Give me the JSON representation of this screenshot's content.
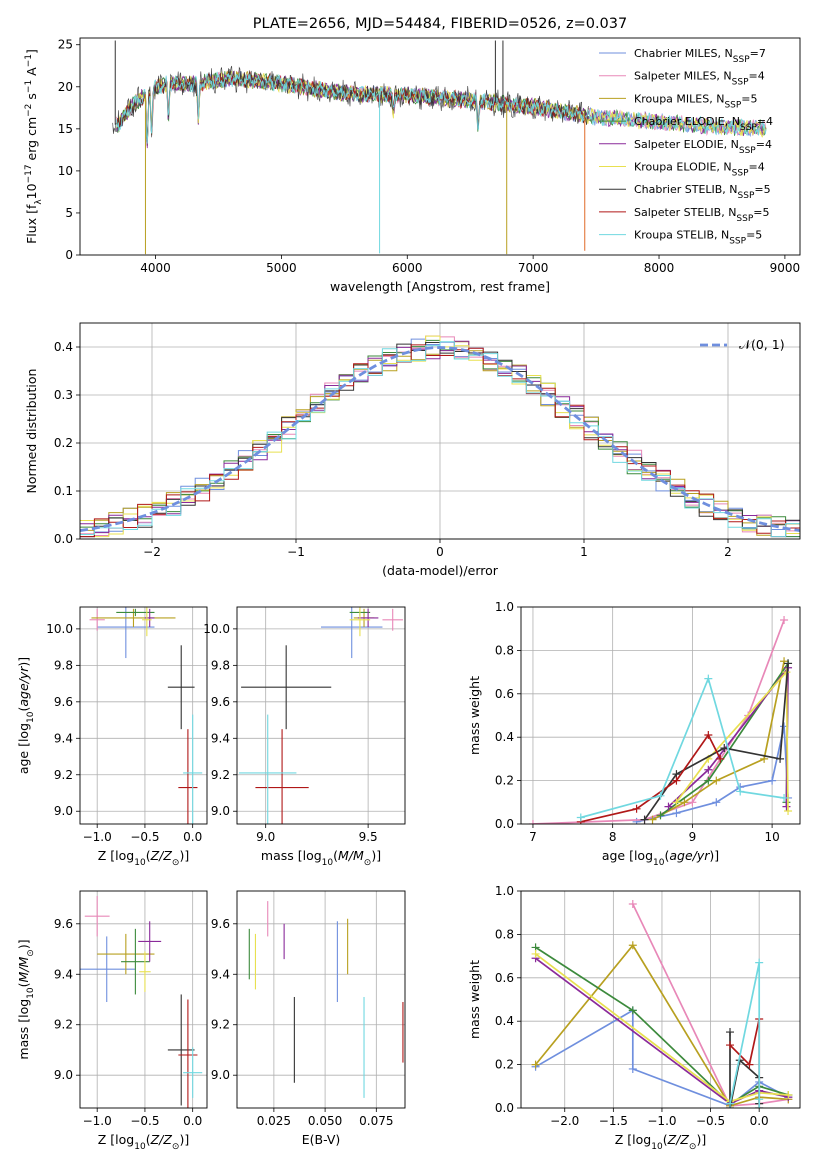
{
  "figure_title": "PLATE=2656, MJD=54484, FIBERID=0526, z=0.037",
  "legend": [
    {
      "text": "Chabrier MILES, N",
      "sub": "SSP",
      "tail": "=7",
      "color": "#6f8fde"
    },
    {
      "text": "Salpeter MILES, N",
      "sub": "SSP",
      "tail": "=4",
      "color": "#e888b8"
    },
    {
      "text": "Kroupa MILES, N",
      "sub": "SSP",
      "tail": "=5",
      "color": "#b8a020"
    },
    {
      "text": "Chabrier ELODIE, N",
      "sub": "SSP",
      "tail": "=4",
      "color": "#3c8a3c"
    },
    {
      "text": "Salpeter ELODIE, N",
      "sub": "SSP",
      "tail": "=4",
      "color": "#8a2a9a"
    },
    {
      "text": "Kroupa ELODIE, N",
      "sub": "SSP",
      "tail": "=4",
      "color": "#e8e050"
    },
    {
      "text": "Chabrier STELIB, N",
      "sub": "SSP",
      "tail": "=5",
      "color": "#333333"
    },
    {
      "text": "Salpeter STELIB, N",
      "sub": "SSP",
      "tail": "=5",
      "color": "#b01818"
    },
    {
      "text": "Kroupa STELIB, N",
      "sub": "SSP",
      "tail": "=5",
      "color": "#70d8e0"
    }
  ],
  "hist_legend": "𝒩(0, 1)",
  "chart_data": [
    {
      "id": "spectrum",
      "type": "line",
      "xlabel": "wavelength [Angstrom, rest frame]",
      "ylabel": "Flux [fλ10⁻¹⁷ erg cm⁻² s⁻¹ A⁻¹]",
      "xlim": [
        3400,
        9120
      ],
      "ylim": [
        0,
        25.8
      ],
      "xticks": [
        4000,
        5000,
        6000,
        7000,
        8000,
        9000
      ],
      "yticks": [
        0,
        5,
        10,
        15,
        20,
        25
      ],
      "grid": false,
      "continuum": [
        [
          3700,
          15.5
        ],
        [
          3800,
          17.5
        ],
        [
          3950,
          19.5
        ],
        [
          4100,
          20.5
        ],
        [
          4300,
          20.3
        ],
        [
          4600,
          21.0
        ],
        [
          5000,
          20.4
        ],
        [
          5500,
          19.2
        ],
        [
          6000,
          19.0
        ],
        [
          6500,
          18.4
        ],
        [
          7000,
          17.6
        ],
        [
          7500,
          16.4
        ],
        [
          8000,
          15.8
        ],
        [
          8500,
          15.2
        ],
        [
          9000,
          15.0
        ]
      ],
      "features": [
        [
          3934,
          6
        ],
        [
          3969,
          5
        ],
        [
          4102,
          4
        ],
        [
          4340,
          4
        ],
        [
          5890,
          2
        ],
        [
          6563,
          3
        ]
      ],
      "spikes": [
        [
          5780,
          0.2
        ],
        [
          6790,
          0.1
        ],
        [
          7410,
          0.5
        ],
        [
          3920,
          0.1
        ],
        [
          3680,
          25.5
        ],
        [
          6700,
          25.5
        ],
        [
          6760,
          25.5
        ]
      ]
    },
    {
      "id": "residual_histogram",
      "type": "step",
      "xlabel": "(data-model)/error",
      "ylabel": "Normed distribution",
      "xlim": [
        -2.5,
        2.5
      ],
      "ylim": [
        0,
        0.45
      ],
      "xticks": [
        -2,
        -1,
        0,
        1,
        2
      ],
      "yticks": [
        0.0,
        0.1,
        0.2,
        0.3,
        0.4
      ],
      "grid": true,
      "bin_width": 0.1,
      "gaussian": {
        "mean": 0,
        "sigma": 1
      }
    },
    {
      "id": "age_vs_Z",
      "type": "errorbar",
      "xlabel": "Z [log₁₀(Z/Z⊙)]",
      "ylabel": "age  [log₁₀(age/yr)]",
      "xlim": [
        -1.18,
        0.15
      ],
      "ylim": [
        8.93,
        10.12
      ],
      "xticks": [
        -1.0,
        -0.5,
        0.0
      ],
      "yticks": [
        9.0,
        9.2,
        9.4,
        9.6,
        9.8,
        10.0
      ],
      "grid": true,
      "points": [
        {
          "x": -0.7,
          "xerr": 0.3,
          "y": 10.01,
          "yerr": 0.17
        },
        {
          "x": -1.0,
          "xerr": 0.08,
          "y": 10.05,
          "yerr": 0.06
        },
        {
          "x": -0.62,
          "xerr": 0.44,
          "y": 10.06,
          "yerr": 0.05
        },
        {
          "x": -0.6,
          "xerr": 0.2,
          "y": 10.09,
          "yerr": 0.02
        },
        {
          "x": -0.45,
          "xerr": 0.05,
          "y": 10.06,
          "yerr": 0.05
        },
        {
          "x": -0.48,
          "xerr": 0.05,
          "y": 10.05,
          "yerr": 0.09
        },
        {
          "x": -0.12,
          "xerr": 0.14,
          "y": 9.68,
          "yerr": 0.23
        },
        {
          "x": -0.05,
          "xerr": 0.1,
          "y": 9.13,
          "yerr": 0.32
        },
        {
          "x": 0.0,
          "xerr": 0.1,
          "y": 9.21,
          "yerr": 0.32
        }
      ]
    },
    {
      "id": "age_vs_mass",
      "type": "errorbar",
      "xlabel": "mass [log₁₀(M/M⊙)]",
      "ylabel": "",
      "xlim": [
        8.86,
        9.68
      ],
      "ylim": [
        8.93,
        10.12
      ],
      "xticks": [
        9.0,
        9.5
      ],
      "yticks": [
        9.0,
        9.2,
        9.4,
        9.6,
        9.8,
        10.0
      ],
      "grid": true,
      "points": [
        {
          "x": 9.42,
          "xerr": 0.15,
          "y": 10.01,
          "yerr": 0.17
        },
        {
          "x": 9.62,
          "xerr": 0.05,
          "y": 10.05,
          "yerr": 0.06
        },
        {
          "x": 9.48,
          "xerr": 0.05,
          "y": 10.06,
          "yerr": 0.05
        },
        {
          "x": 9.46,
          "xerr": 0.05,
          "y": 10.09,
          "yerr": 0.02
        },
        {
          "x": 9.5,
          "xerr": 0.05,
          "y": 10.06,
          "yerr": 0.05
        },
        {
          "x": 9.46,
          "xerr": 0.05,
          "y": 10.05,
          "yerr": 0.09
        },
        {
          "x": 9.1,
          "xerr": 0.22,
          "y": 9.68,
          "yerr": 0.23
        },
        {
          "x": 9.08,
          "xerr": 0.13,
          "y": 9.13,
          "yerr": 0.32
        },
        {
          "x": 9.01,
          "xerr": 0.14,
          "y": 9.21,
          "yerr": 0.32
        }
      ]
    },
    {
      "id": "mass_weight_vs_age",
      "type": "line",
      "xlabel": "age  [log₁₀(age/yr)]",
      "ylabel": "mass weight",
      "xlim": [
        6.85,
        10.35
      ],
      "ylim": [
        0.0,
        1.0
      ],
      "xticks": [
        7,
        8,
        9,
        10
      ],
      "yticks": [
        0.0,
        0.2,
        0.4,
        0.6,
        0.8,
        1.0
      ],
      "grid": true,
      "series": [
        {
          "x": [
            8.3,
            8.8,
            9.3,
            9.6,
            10.0,
            10.15,
            10.2
          ],
          "y": [
            0.01,
            0.05,
            0.1,
            0.17,
            0.2,
            0.45,
            0.12
          ]
        },
        {
          "x": [
            7.0,
            8.4,
            9.0,
            9.7,
            10.15
          ],
          "y": [
            0.0,
            0.02,
            0.1,
            0.5,
            0.94
          ]
        },
        {
          "x": [
            8.5,
            8.9,
            9.3,
            9.9,
            10.15
          ],
          "y": [
            0.02,
            0.1,
            0.2,
            0.3,
            0.75
          ]
        },
        {
          "x": [
            8.6,
            9.2,
            10.2,
            10.18
          ],
          "y": [
            0.04,
            0.2,
            0.74,
            0.1
          ]
        },
        {
          "x": [
            8.7,
            9.2,
            10.2,
            10.18
          ],
          "y": [
            0.08,
            0.25,
            0.72,
            0.08
          ]
        },
        {
          "x": [
            8.8,
            9.2,
            10.18,
            10.2
          ],
          "y": [
            0.1,
            0.3,
            0.7,
            0.06
          ]
        },
        {
          "x": [
            8.4,
            8.8,
            9.4,
            10.1,
            10.2
          ],
          "y": [
            0.02,
            0.23,
            0.35,
            0.3,
            0.74
          ]
        },
        {
          "x": [
            7.6,
            8.3,
            8.8,
            9.2,
            9.35
          ],
          "y": [
            0.01,
            0.07,
            0.2,
            0.41,
            0.3
          ]
        },
        {
          "x": [
            7.6,
            8.6,
            9.2,
            9.6,
            10.15
          ],
          "y": [
            0.03,
            0.13,
            0.67,
            0.15,
            0.12
          ]
        }
      ]
    },
    {
      "id": "mass_vs_Z",
      "type": "errorbar",
      "xlabel": "Z [log₁₀(Z/Z⊙)]",
      "ylabel": "mass [log₁₀(M/M⊙)]",
      "xlim": [
        -1.18,
        0.15
      ],
      "ylim": [
        8.87,
        9.73
      ],
      "xticks": [
        -1.0,
        -0.5,
        0.0
      ],
      "yticks": [
        9.0,
        9.2,
        9.4,
        9.6
      ],
      "grid": true,
      "points": [
        {
          "x": -0.9,
          "xerr": 0.3,
          "y": 9.42,
          "yerr": 0.13
        },
        {
          "x": -1.0,
          "xerr": 0.13,
          "y": 9.63,
          "yerr": 0.08
        },
        {
          "x": -0.7,
          "xerr": 0.3,
          "y": 9.48,
          "yerr": 0.08
        },
        {
          "x": -0.6,
          "xerr": 0.15,
          "y": 9.45,
          "yerr": 0.13
        },
        {
          "x": -0.45,
          "xerr": 0.12,
          "y": 9.53,
          "yerr": 0.08
        },
        {
          "x": -0.5,
          "xerr": 0.06,
          "y": 9.41,
          "yerr": 0.08
        },
        {
          "x": -0.12,
          "xerr": 0.14,
          "y": 9.1,
          "yerr": 0.22
        },
        {
          "x": -0.05,
          "xerr": 0.1,
          "y": 9.08,
          "yerr": 0.22
        },
        {
          "x": 0.0,
          "xerr": 0.1,
          "y": 9.01,
          "yerr": 0.1
        }
      ]
    },
    {
      "id": "mass_vs_EBV",
      "type": "errorbar",
      "xlabel": "E(B-V)",
      "ylabel": "",
      "xlim": [
        0.007,
        0.089
      ],
      "ylim": [
        8.87,
        9.73
      ],
      "xticks": [
        0.025,
        0.05,
        0.075
      ],
      "xticklabels": [
        "0.025",
        "0.050",
        "0.075"
      ],
      "yticks": [
        9.0,
        9.2,
        9.4,
        9.6
      ],
      "grid": true,
      "points": [
        {
          "x": 0.056,
          "xerr": 0,
          "y": 9.45,
          "yerr": 0.16
        },
        {
          "x": 0.022,
          "xerr": 0,
          "y": 9.62,
          "yerr": 0.07
        },
        {
          "x": 0.061,
          "xerr": 0,
          "y": 9.51,
          "yerr": 0.11
        },
        {
          "x": 0.013,
          "xerr": 0,
          "y": 9.48,
          "yerr": 0.1
        },
        {
          "x": 0.03,
          "xerr": 0,
          "y": 9.53,
          "yerr": 0.07
        },
        {
          "x": 0.016,
          "xerr": 0,
          "y": 9.45,
          "yerr": 0.11
        },
        {
          "x": 0.035,
          "xerr": 0,
          "y": 9.14,
          "yerr": 0.17
        },
        {
          "x": 0.088,
          "xerr": 0,
          "y": 9.17,
          "yerr": 0.12
        },
        {
          "x": 0.069,
          "xerr": 0,
          "y": 9.11,
          "yerr": 0.2
        }
      ]
    },
    {
      "id": "mass_weight_vs_Z",
      "type": "line",
      "xlabel": "Z [log₁₀(Z/Z⊙)]",
      "ylabel": "mass weight",
      "xlim": [
        -2.45,
        0.42
      ],
      "ylim": [
        0.0,
        1.0
      ],
      "xticks": [
        -2.0,
        -1.5,
        -1.0,
        -0.5,
        0.0
      ],
      "yticks": [
        0.0,
        0.2,
        0.4,
        0.6,
        0.8,
        1.0
      ],
      "grid": true,
      "series": [
        {
          "x": [
            -2.3,
            -1.3,
            -1.3,
            -0.3,
            0.0,
            0.3
          ],
          "y": [
            0.19,
            0.45,
            0.18,
            0.01,
            0.12,
            0.05
          ]
        },
        {
          "x": [
            -1.3,
            -0.3,
            0.0,
            0.3
          ],
          "y": [
            0.94,
            0.01,
            0.02,
            0.04
          ]
        },
        {
          "x": [
            -2.3,
            -1.3,
            -0.3,
            0.0,
            0.3
          ],
          "y": [
            0.2,
            0.75,
            0.01,
            0.05,
            0.04
          ]
        },
        {
          "x": [
            -2.3,
            -1.3,
            -0.3,
            0.0,
            0.3
          ],
          "y": [
            0.74,
            0.45,
            0.02,
            0.1,
            0.06
          ]
        },
        {
          "x": [
            -2.3,
            -0.3,
            0.0,
            0.3
          ],
          "y": [
            0.69,
            0.02,
            0.08,
            0.05
          ]
        },
        {
          "x": [
            -2.3,
            -0.3,
            0.0,
            0.3
          ],
          "y": [
            0.71,
            0.03,
            0.07,
            0.06
          ]
        },
        {
          "x": [
            -0.3,
            -0.3,
            -0.2,
            0.0,
            0.0
          ],
          "y": [
            0.35,
            0.0,
            0.22,
            0.14,
            0.02
          ]
        },
        {
          "x": [
            -0.3,
            -0.1,
            0.0,
            0.0
          ],
          "y": [
            0.29,
            0.2,
            0.41,
            0.0
          ]
        },
        {
          "x": [
            -0.3,
            0.0,
            0.0,
            0.0
          ],
          "y": [
            0.02,
            0.67,
            0.04,
            0.0
          ]
        }
      ]
    }
  ]
}
